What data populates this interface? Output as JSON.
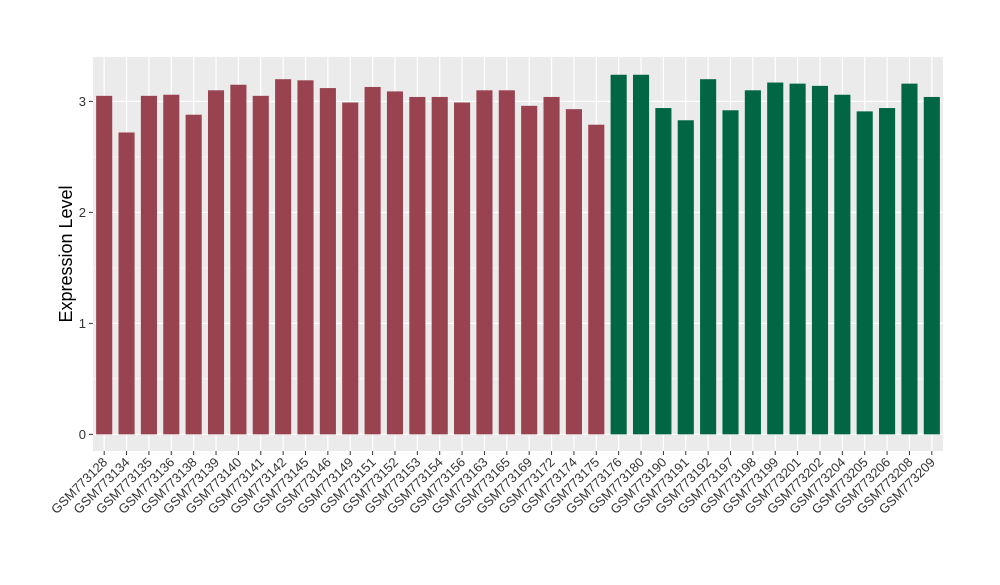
{
  "chart_data": {
    "type": "bar",
    "title": "",
    "xlabel": "",
    "ylabel": "Expression Level",
    "ylim": [
      -0.15,
      3.4
    ],
    "yticks": [
      0,
      1,
      2,
      3
    ],
    "grid": true,
    "legend": "none",
    "colors": {
      "group1": "#9A4350",
      "group2": "#006644",
      "panel": "#EBEBEB",
      "grid": "#FFFFFF",
      "tick_text": "#333333"
    },
    "categories": [
      "GSM773128",
      "GSM773134",
      "GSM773135",
      "GSM773136",
      "GSM773138",
      "GSM773139",
      "GSM773140",
      "GSM773141",
      "GSM773142",
      "GSM773145",
      "GSM773146",
      "GSM773149",
      "GSM773151",
      "GSM773152",
      "GSM773153",
      "GSM773154",
      "GSM773156",
      "GSM773163",
      "GSM773165",
      "GSM773169",
      "GSM773172",
      "GSM773174",
      "GSM773175",
      "GSM773176",
      "GSM773180",
      "GSM773190",
      "GSM773191",
      "GSM773192",
      "GSM773197",
      "GSM773198",
      "GSM773199",
      "GSM773201",
      "GSM773202",
      "GSM773204",
      "GSM773205",
      "GSM773206",
      "GSM773208",
      "GSM773209"
    ],
    "values": [
      3.05,
      2.72,
      3.05,
      3.06,
      2.88,
      3.1,
      3.15,
      3.05,
      3.2,
      3.19,
      3.12,
      2.99,
      3.13,
      3.09,
      3.04,
      3.04,
      2.99,
      3.1,
      3.1,
      2.96,
      3.04,
      2.93,
      2.79,
      3.24,
      3.24,
      2.94,
      2.83,
      3.2,
      2.92,
      3.1,
      3.17,
      3.16,
      3.14,
      3.06,
      2.91,
      2.94,
      3.16,
      3.04
    ],
    "groups": [
      1,
      1,
      1,
      1,
      1,
      1,
      1,
      1,
      1,
      1,
      1,
      1,
      1,
      1,
      1,
      1,
      1,
      1,
      1,
      1,
      1,
      1,
      1,
      2,
      2,
      2,
      2,
      2,
      2,
      2,
      2,
      2,
      2,
      2,
      2,
      2,
      2,
      2
    ]
  }
}
